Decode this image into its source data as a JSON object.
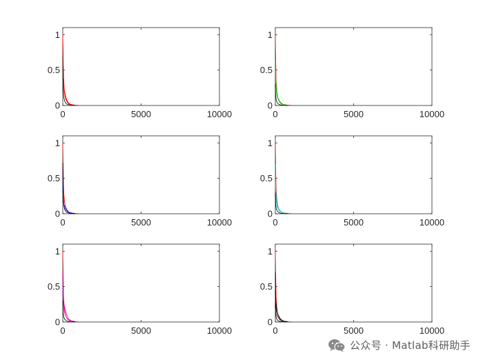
{
  "chart_data": [
    {
      "type": "line",
      "xlim": [
        0,
        10000
      ],
      "ylim": [
        0,
        1.1
      ],
      "xticks": [
        0,
        5000,
        10000
      ],
      "yticks": [
        0,
        0.5,
        1
      ],
      "xtick_labels": [
        "0",
        "5000",
        "10000"
      ],
      "ytick_labels": [
        "0",
        "0.5",
        "1"
      ],
      "grid": false,
      "series": [
        {
          "color": "#ff0000",
          "x": [
            0,
            20,
            50,
            100,
            150,
            200,
            300,
            400,
            600,
            800,
            1000
          ],
          "y": [
            1.0,
            0.72,
            0.35,
            0.2,
            0.12,
            0.08,
            0.04,
            0.02,
            0.01,
            0.005,
            0.003
          ]
        },
        {
          "color": "#ff0000",
          "x": [
            0,
            30,
            80,
            150,
            250,
            350,
            500,
            800
          ],
          "y": [
            0.98,
            0.5,
            0.25,
            0.15,
            0.08,
            0.04,
            0.015,
            0.004
          ]
        },
        {
          "color": "#000000",
          "x": [
            0,
            20,
            60,
            120,
            200,
            300,
            500,
            800
          ],
          "y": [
            0.7,
            0.3,
            0.12,
            0.06,
            0.03,
            0.015,
            0.005,
            0.002
          ]
        },
        {
          "color": "#ff0000",
          "x": [
            0,
            40,
            100,
            200,
            300,
            450,
            700
          ],
          "y": [
            0.9,
            0.42,
            0.22,
            0.1,
            0.05,
            0.02,
            0.006
          ]
        }
      ]
    },
    {
      "type": "line",
      "xlim": [
        0,
        10000
      ],
      "ylim": [
        0,
        1.1
      ],
      "xticks": [
        0,
        5000,
        10000
      ],
      "yticks": [
        0,
        0.5,
        1
      ],
      "xtick_labels": [
        "0",
        "5000",
        "10000"
      ],
      "ytick_labels": [
        "0",
        "0.5",
        "1"
      ],
      "grid": false,
      "series": [
        {
          "color": "#ff0000",
          "x": [
            0,
            20,
            50,
            100,
            150,
            200,
            300,
            400,
            600,
            800,
            1000
          ],
          "y": [
            1.0,
            0.72,
            0.35,
            0.2,
            0.12,
            0.08,
            0.04,
            0.02,
            0.01,
            0.005,
            0.003
          ]
        },
        {
          "color": "#00cc00",
          "x": [
            0,
            30,
            80,
            150,
            250,
            350,
            500,
            800
          ],
          "y": [
            0.65,
            0.38,
            0.2,
            0.12,
            0.07,
            0.04,
            0.015,
            0.004
          ]
        },
        {
          "color": "#00cc00",
          "x": [
            0,
            40,
            100,
            200,
            300,
            450,
            700
          ],
          "y": [
            0.5,
            0.28,
            0.14,
            0.08,
            0.04,
            0.02,
            0.006
          ]
        },
        {
          "color": "#000000",
          "x": [
            0,
            20,
            60,
            120,
            200,
            300,
            500,
            800
          ],
          "y": [
            0.3,
            0.15,
            0.07,
            0.04,
            0.02,
            0.01,
            0.004,
            0.002
          ]
        }
      ]
    },
    {
      "type": "line",
      "xlim": [
        0,
        10000
      ],
      "ylim": [
        0,
        1.1
      ],
      "xticks": [
        0,
        5000,
        10000
      ],
      "yticks": [
        0,
        0.5,
        1
      ],
      "xtick_labels": [
        "0",
        "5000",
        "10000"
      ],
      "ytick_labels": [
        "0",
        "0.5",
        "1"
      ],
      "grid": false,
      "series": [
        {
          "color": "#ff0000",
          "x": [
            0,
            20,
            50,
            100,
            150,
            200,
            300,
            400,
            600,
            800,
            1000
          ],
          "y": [
            1.0,
            0.72,
            0.35,
            0.2,
            0.12,
            0.08,
            0.04,
            0.02,
            0.01,
            0.005,
            0.003
          ]
        },
        {
          "color": "#0000ff",
          "x": [
            0,
            30,
            80,
            150,
            250,
            350,
            500,
            800
          ],
          "y": [
            0.6,
            0.25,
            0.12,
            0.1,
            0.06,
            0.03,
            0.01,
            0.003
          ]
        },
        {
          "color": "#0000ff",
          "x": [
            0,
            40,
            100,
            200,
            300,
            450,
            700
          ],
          "y": [
            0.4,
            0.18,
            0.09,
            0.06,
            0.03,
            0.015,
            0.005
          ]
        },
        {
          "color": "#000000",
          "x": [
            0,
            20,
            60,
            120,
            200,
            300,
            500,
            800
          ],
          "y": [
            0.72,
            0.3,
            0.12,
            0.06,
            0.03,
            0.015,
            0.005,
            0.002
          ]
        }
      ]
    },
    {
      "type": "line",
      "xlim": [
        0,
        10000
      ],
      "ylim": [
        0,
        1.1
      ],
      "xticks": [
        0,
        5000,
        10000
      ],
      "yticks": [
        0,
        0.5,
        1
      ],
      "xtick_labels": [
        "0",
        "5000",
        "10000"
      ],
      "ytick_labels": [
        "0",
        "0.5",
        "1"
      ],
      "grid": false,
      "series": [
        {
          "color": "#ff0000",
          "x": [
            0,
            20,
            50,
            100,
            150,
            200,
            300,
            400,
            600,
            800,
            1000
          ],
          "y": [
            1.0,
            0.72,
            0.35,
            0.2,
            0.12,
            0.08,
            0.04,
            0.02,
            0.01,
            0.005,
            0.003
          ]
        },
        {
          "color": "#00cccc",
          "x": [
            0,
            30,
            80,
            150,
            250,
            350,
            500,
            800
          ],
          "y": [
            0.7,
            0.35,
            0.18,
            0.1,
            0.06,
            0.03,
            0.012,
            0.004
          ]
        },
        {
          "color": "#00cccc",
          "x": [
            0,
            40,
            100,
            200,
            300,
            450,
            700
          ],
          "y": [
            0.45,
            0.22,
            0.11,
            0.06,
            0.03,
            0.015,
            0.005
          ]
        },
        {
          "color": "#000000",
          "x": [
            0,
            20,
            60,
            120,
            200,
            300,
            500,
            800
          ],
          "y": [
            0.3,
            0.14,
            0.07,
            0.04,
            0.02,
            0.01,
            0.004,
            0.002
          ]
        }
      ]
    },
    {
      "type": "line",
      "xlim": [
        0,
        10000
      ],
      "ylim": [
        0,
        1.1
      ],
      "xticks": [
        0,
        5000,
        10000
      ],
      "yticks": [
        0,
        0.5,
        1
      ],
      "xtick_labels": [
        "0",
        "5000",
        "10000"
      ],
      "ytick_labels": [
        "0",
        "0.5",
        "1"
      ],
      "grid": false,
      "series": [
        {
          "color": "#ff0000",
          "x": [
            0,
            20,
            50,
            100,
            150,
            200,
            300,
            400,
            600,
            800,
            1000
          ],
          "y": [
            1.0,
            0.72,
            0.35,
            0.2,
            0.12,
            0.08,
            0.04,
            0.02,
            0.01,
            0.005,
            0.003
          ]
        },
        {
          "color": "#cc00cc",
          "x": [
            0,
            30,
            80,
            150,
            250,
            350,
            500,
            800
          ],
          "y": [
            0.7,
            0.32,
            0.25,
            0.18,
            0.1,
            0.05,
            0.02,
            0.005
          ]
        },
        {
          "color": "#cc00cc",
          "x": [
            0,
            40,
            100,
            200,
            300,
            450,
            700
          ],
          "y": [
            0.5,
            0.25,
            0.14,
            0.08,
            0.04,
            0.02,
            0.006
          ]
        },
        {
          "color": "#000000",
          "x": [
            0,
            20,
            60,
            120,
            200,
            300,
            500,
            800
          ],
          "y": [
            0.3,
            0.14,
            0.07,
            0.04,
            0.02,
            0.01,
            0.004,
            0.002
          ]
        }
      ]
    },
    {
      "type": "line",
      "xlim": [
        0,
        10000
      ],
      "ylim": [
        0,
        1.1
      ],
      "xticks": [
        0,
        5000,
        10000
      ],
      "yticks": [
        0,
        0.5,
        1
      ],
      "xtick_labels": [
        "0",
        "5000",
        "10000"
      ],
      "ytick_labels": [
        "0",
        "0.5",
        "1"
      ],
      "grid": false,
      "series": [
        {
          "color": "#ff0000",
          "x": [
            0,
            20,
            50,
            100,
            150,
            200,
            300,
            400,
            600,
            800,
            1000
          ],
          "y": [
            1.0,
            0.72,
            0.35,
            0.2,
            0.12,
            0.08,
            0.04,
            0.02,
            0.01,
            0.005,
            0.003
          ]
        },
        {
          "color": "#000000",
          "x": [
            0,
            30,
            80,
            150,
            250,
            350,
            500,
            800
          ],
          "y": [
            0.7,
            0.3,
            0.2,
            0.12,
            0.07,
            0.04,
            0.015,
            0.004
          ]
        },
        {
          "color": "#000000",
          "x": [
            0,
            40,
            100,
            200,
            300,
            450,
            700
          ],
          "y": [
            0.45,
            0.2,
            0.1,
            0.06,
            0.03,
            0.015,
            0.005
          ]
        },
        {
          "color": "#000000",
          "x": [
            0,
            20,
            60,
            120,
            200,
            300,
            500,
            800
          ],
          "y": [
            0.25,
            0.12,
            0.06,
            0.03,
            0.015,
            0.008,
            0.003,
            0.001
          ]
        }
      ]
    }
  ],
  "watermark": {
    "icon": "wechat-icon",
    "text": "公众号 · Matlab科研助手"
  }
}
